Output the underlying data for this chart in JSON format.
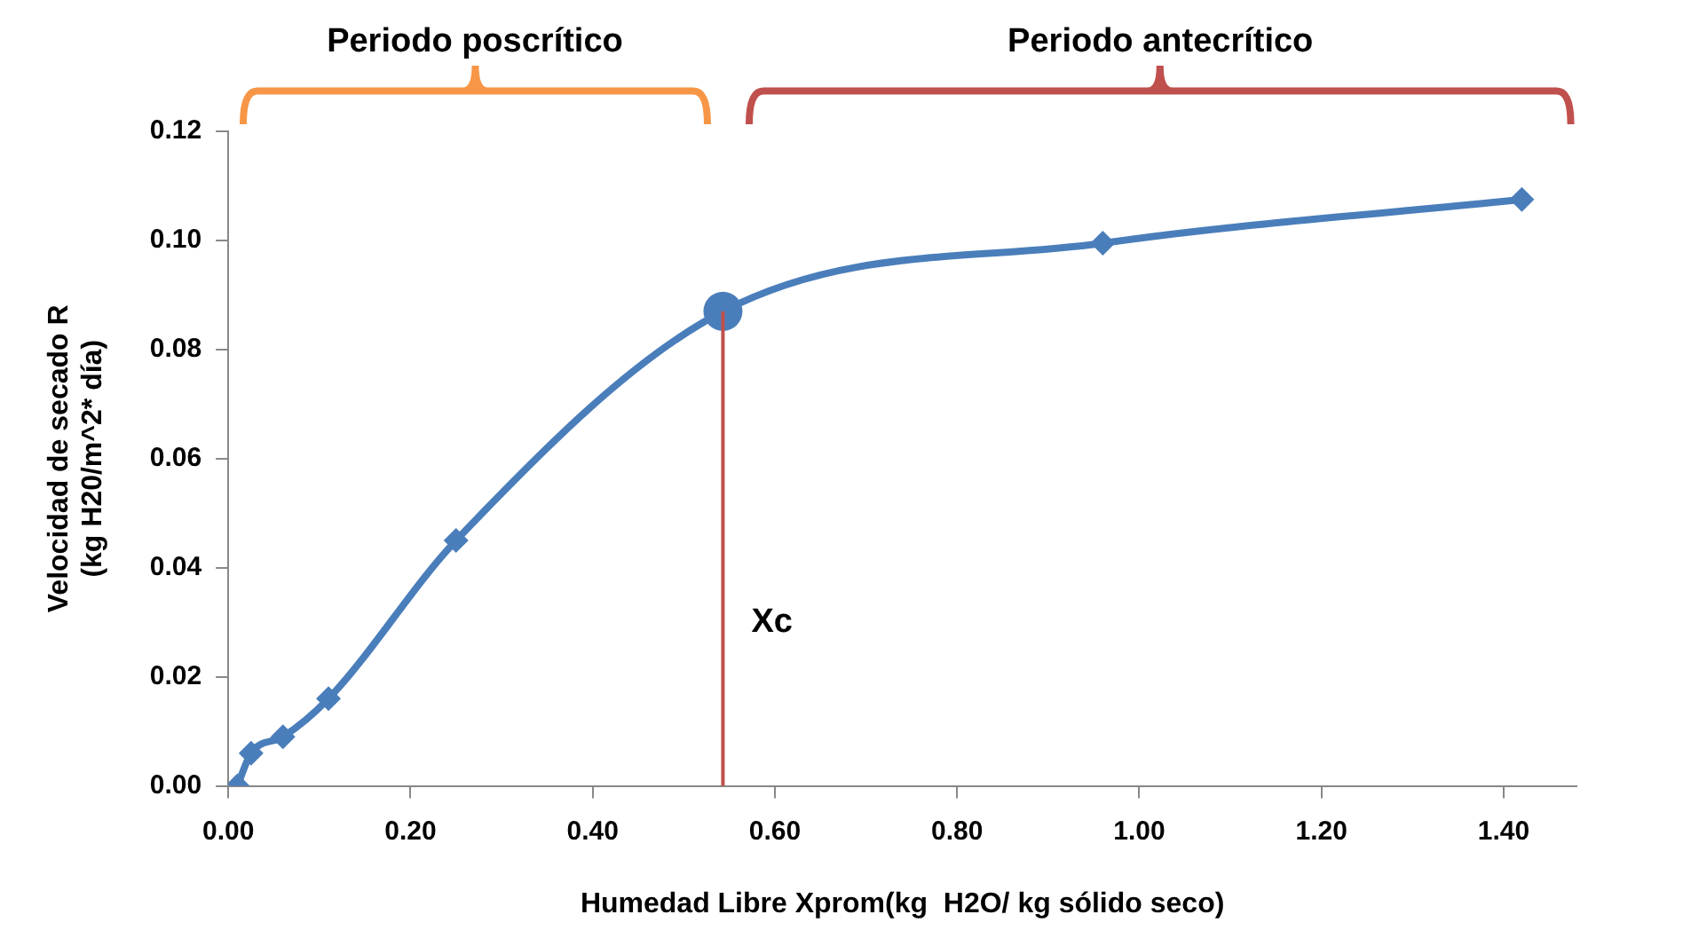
{
  "chart_data": {
    "type": "line",
    "xlabel": "Humedad Libre Xprom(kg  H2O/ kg sólido seco)",
    "ylabel": "Velocidad de secado R\n(kg H20/m^2* día)",
    "series": [
      {
        "color": "#4a7ebb",
        "marker": "diamond",
        "x": [
          0.01,
          0.025,
          0.06,
          0.11,
          0.25,
          0.543,
          0.96,
          1.42
        ],
        "values": [
          0.0,
          0.006,
          0.009,
          0.016,
          0.045,
          0.087,
          0.0995,
          0.1075
        ]
      },
      {
        "type": "scatter",
        "color": "#4a7ebb",
        "marker": "circle",
        "x": [
          0.543
        ],
        "values": [
          0.087
        ]
      }
    ],
    "xlim": [
      0,
      1.48
    ],
    "xticks": [
      {
        "value": 0,
        "label": "0.00"
      },
      {
        "value": 0.2,
        "label": "0.20"
      },
      {
        "value": 0.4,
        "label": "0.40"
      },
      {
        "value": 0.6,
        "label": "0.60"
      },
      {
        "value": 0.8,
        "label": "0.80"
      },
      {
        "value": 1.0,
        "label": "1.00"
      },
      {
        "value": 1.2,
        "label": "1.20"
      },
      {
        "value": 1.4,
        "label": "1.40"
      }
    ],
    "ylim": [
      0,
      0.12
    ],
    "yticks": [
      {
        "value": 0,
        "label": "0.00"
      },
      {
        "value": 0.02,
        "label": "0.02"
      },
      {
        "value": 0.04,
        "label": "0.04"
      },
      {
        "value": 0.06,
        "label": "0.06"
      },
      {
        "value": 0.08,
        "label": "0.08"
      },
      {
        "value": 0.1,
        "label": "0.10"
      },
      {
        "value": 0.12,
        "label": "0.12"
      }
    ],
    "grid": false,
    "legend": false,
    "ref_lines": [
      {
        "axis": "x",
        "value": 0.543,
        "label": "Xc",
        "color": "#c0504d"
      }
    ],
    "annotations": [
      "Periodo poscrítico",
      "Periodo antecrítico"
    ]
  }
}
